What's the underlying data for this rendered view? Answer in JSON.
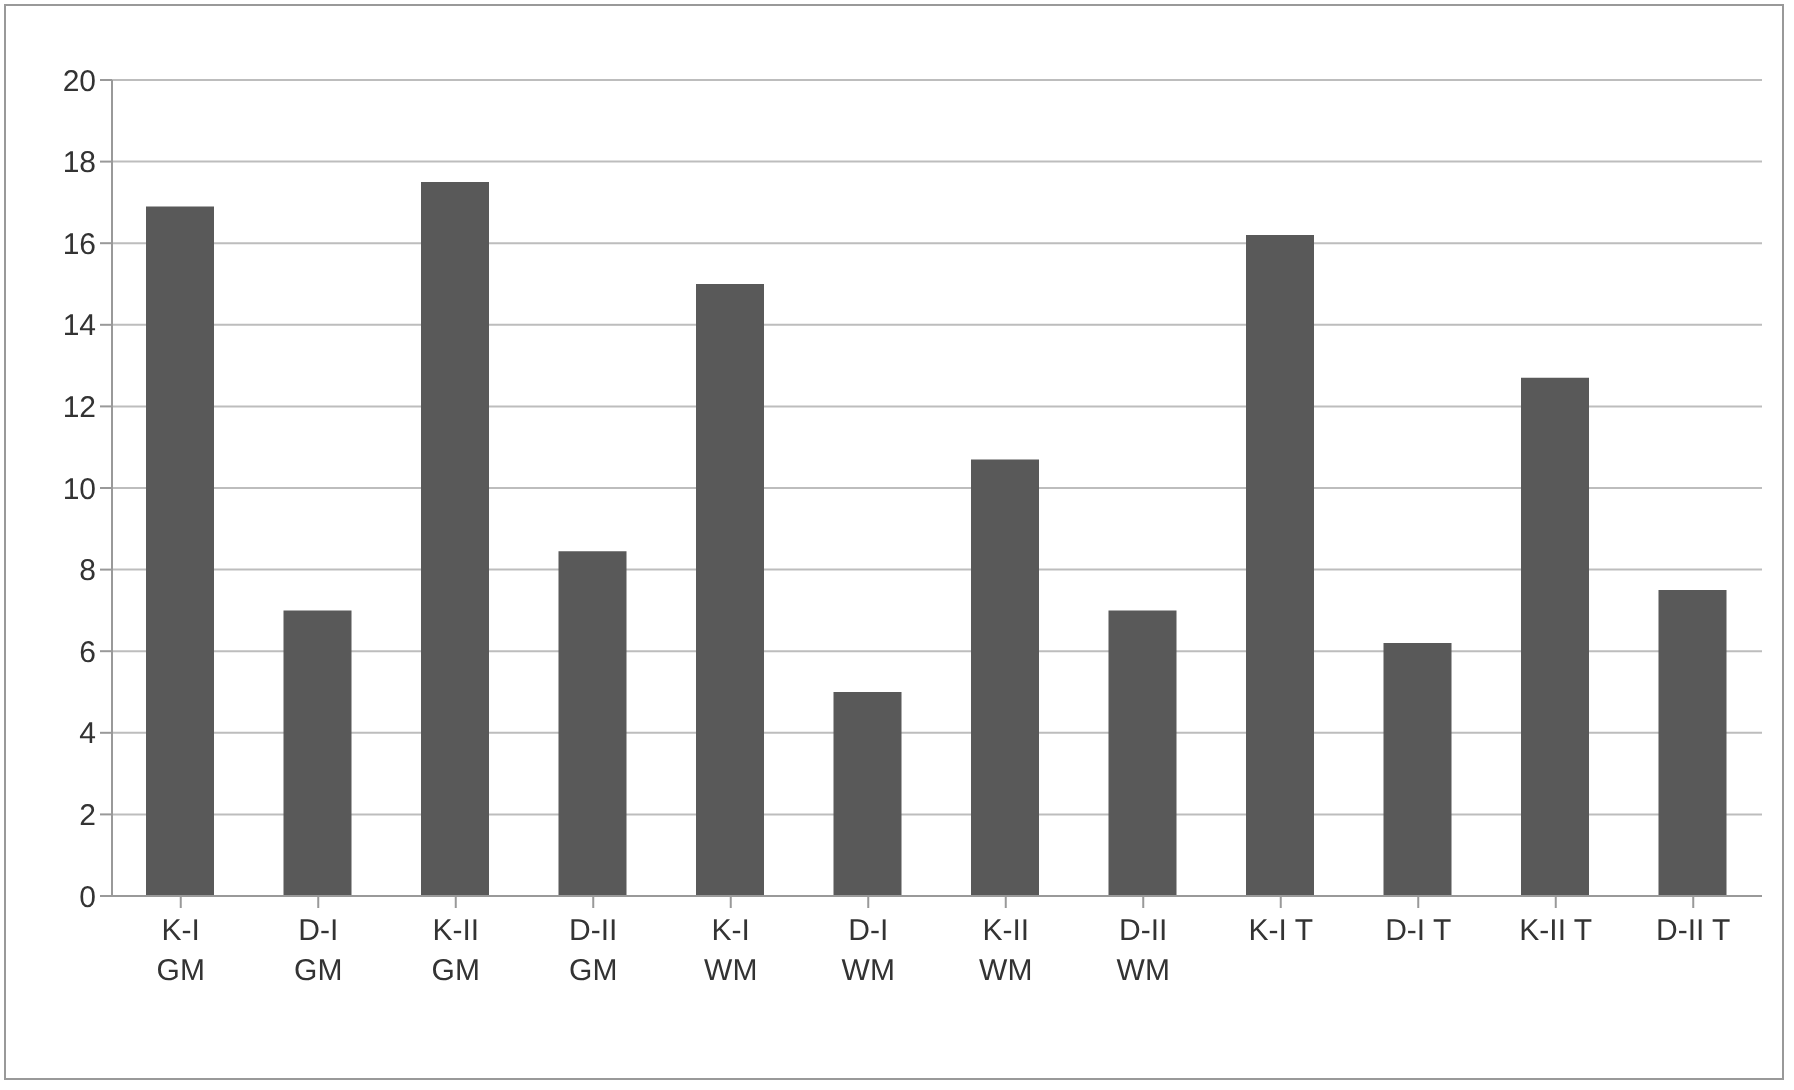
{
  "chart_data": {
    "type": "bar",
    "categories": [
      "K-I GM",
      "D-I GM",
      "K-II GM",
      "D-II GM",
      "K-I WM",
      "D-I WM",
      "K-II WM",
      "D-II WM",
      "K-I T",
      "D-I T",
      "K-II T",
      "D-II T"
    ],
    "values": [
      16.9,
      7.0,
      17.5,
      8.45,
      15.0,
      5.0,
      10.7,
      7.0,
      16.2,
      6.2,
      12.7,
      7.5
    ],
    "color": "#595959",
    "ylim": [
      0,
      20
    ],
    "yticks": [
      0,
      2,
      4,
      6,
      8,
      10,
      12,
      14,
      16,
      18,
      20
    ],
    "grid": "y"
  }
}
